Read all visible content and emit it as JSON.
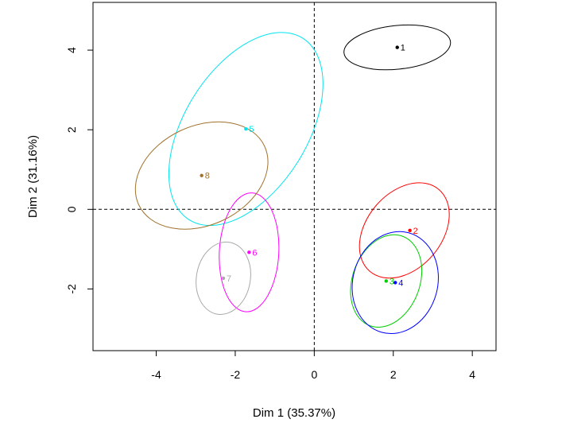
{
  "chart_data": {
    "type": "scatter",
    "xlabel": "Dim 1 (35.37%)",
    "ylabel": "Dim 2 (31.16%)",
    "xlim": [
      -5.6,
      4.6
    ],
    "ylim": [
      -3.55,
      5.2
    ],
    "xticks": [
      -4,
      -2,
      0,
      2,
      4
    ],
    "yticks": [
      -2,
      0,
      2,
      4
    ],
    "reference_lines": {
      "x": 0,
      "y": 0,
      "style": "dashed"
    },
    "points": [
      {
        "label": "1",
        "x": 2.1,
        "y": 4.07,
        "color": "#000000",
        "ellipse": {
          "cx": 2.1,
          "cy": 4.07,
          "rx": 1.35,
          "ry": 0.55,
          "angle": 6
        }
      },
      {
        "label": "2",
        "x": 2.42,
        "y": -0.53,
        "color": "#ff0000",
        "ellipse": {
          "cx": 2.28,
          "cy": -0.53,
          "rx": 1.35,
          "ry": 0.95,
          "angle": 50
        }
      },
      {
        "label": "3",
        "x": 1.82,
        "y": -1.8,
        "color": "#00cd00",
        "ellipse": {
          "cx": 1.82,
          "cy": -1.8,
          "rx": 1.2,
          "ry": 0.85,
          "angle": 70
        }
      },
      {
        "label": "4",
        "x": 2.05,
        "y": -1.84,
        "color": "#0000ff",
        "ellipse": {
          "cx": 2.05,
          "cy": -1.84,
          "rx": 1.3,
          "ry": 1.07,
          "angle": 75
        }
      },
      {
        "label": "5",
        "x": -1.73,
        "y": 2.02,
        "color": "#00e5ee",
        "ellipse": {
          "cx": -1.73,
          "cy": 2.02,
          "rx": 2.7,
          "ry": 1.55,
          "angle": 58
        }
      },
      {
        "label": "6",
        "x": -1.65,
        "y": -1.08,
        "color": "#ff00ff",
        "ellipse": {
          "cx": -1.65,
          "cy": -1.08,
          "rx": 1.5,
          "ry": 0.75,
          "angle": 87
        }
      },
      {
        "label": "7",
        "x": -2.3,
        "y": -1.73,
        "color": "#a9a9a9",
        "ellipse": {
          "cx": -2.3,
          "cy": -1.73,
          "rx": 0.92,
          "ry": 0.68,
          "angle": 80
        }
      },
      {
        "label": "8",
        "x": -2.85,
        "y": 0.85,
        "color": "#a0722d",
        "ellipse": {
          "cx": -2.85,
          "cy": 0.85,
          "rx": 1.75,
          "ry": 1.25,
          "angle": 25
        }
      }
    ]
  }
}
